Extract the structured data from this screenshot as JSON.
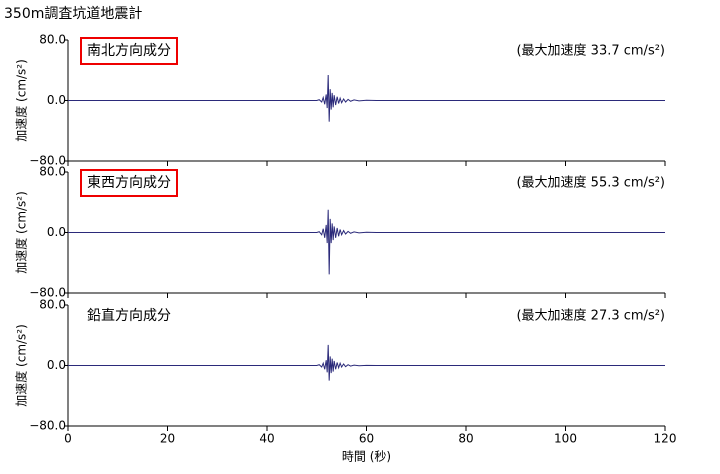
{
  "title": "350m調査坑道地震計",
  "chart_data": [
    {
      "type": "line",
      "subtitle": "南北方向成分",
      "highlight": true,
      "annotation": "(最大加速度 33.7 cm/s²)",
      "ylabel": "加速度 (cm/s²)",
      "x": [
        0,
        50,
        50.5,
        51,
        51.3,
        51.6,
        51.9,
        52.1,
        52.3,
        52.5,
        52.7,
        52.9,
        53.1,
        53.3,
        53.5,
        53.8,
        54.1,
        54.4,
        54.7,
        55,
        55.4,
        55.8,
        56.3,
        56.8,
        57.5,
        58.5,
        60,
        62,
        120
      ],
      "values": [
        0,
        0,
        1,
        -2,
        4,
        -5,
        8,
        -10,
        33.7,
        -28,
        15,
        -12,
        10,
        -9,
        7,
        -6,
        5,
        -4,
        3,
        -3,
        2,
        -2,
        1.5,
        -1,
        0.8,
        -0.5,
        0.3,
        0,
        0
      ],
      "color": "#2b2a7a",
      "xlim": [
        0,
        120
      ],
      "ylim": [
        -80,
        80
      ],
      "xticks": [
        0,
        20,
        40,
        60,
        80,
        100,
        120
      ],
      "yticks": [
        {
          "value": 80,
          "label": "80.0"
        },
        {
          "value": 0,
          "label": "0.0"
        },
        {
          "value": -80,
          "label": "−80.0"
        }
      ]
    },
    {
      "type": "line",
      "subtitle": "東西方向成分",
      "highlight": true,
      "annotation": "(最大加速度 55.3 cm/s²)",
      "ylabel": "加速度 (cm/s²)",
      "x": [
        0,
        50,
        50.5,
        51,
        51.3,
        51.6,
        51.9,
        52.1,
        52.3,
        52.5,
        52.7,
        52.9,
        53.1,
        53.3,
        53.5,
        53.8,
        54.1,
        54.4,
        54.7,
        55,
        55.4,
        55.8,
        56.3,
        56.8,
        57.5,
        58.5,
        60,
        62,
        120
      ],
      "values": [
        0,
        0,
        1,
        -3,
        5,
        -7,
        10,
        -14,
        30,
        -55.3,
        18,
        -14,
        12,
        -10,
        8,
        -7,
        6,
        -5,
        4,
        -3,
        2.5,
        -2,
        1.5,
        -1,
        0.8,
        -0.5,
        0.3,
        0,
        0
      ],
      "color": "#2b2a7a",
      "xlim": [
        0,
        120
      ],
      "ylim": [
        -80,
        80
      ],
      "xticks": [
        0,
        20,
        40,
        60,
        80,
        100,
        120
      ],
      "yticks": [
        {
          "value": 80,
          "label": "80.0"
        },
        {
          "value": 0,
          "label": "0.0"
        },
        {
          "value": -80,
          "label": "−80.0"
        }
      ]
    },
    {
      "type": "line",
      "subtitle": "鉛直方向成分",
      "highlight": false,
      "annotation": "(最大加速度 27.3 cm/s²)",
      "ylabel": "加速度 (cm/s²)",
      "xlabel": "時間 (秒)",
      "show_xtick_labels": true,
      "x": [
        0,
        50,
        50.5,
        51,
        51.3,
        51.6,
        51.9,
        52.1,
        52.3,
        52.5,
        52.7,
        52.9,
        53.1,
        53.3,
        53.5,
        53.8,
        54.1,
        54.4,
        54.7,
        55,
        55.4,
        55.8,
        56.3,
        56.8,
        57.5,
        58.5,
        60,
        62,
        120
      ],
      "values": [
        0,
        0,
        1,
        -2,
        3,
        -5,
        7,
        -9,
        27.3,
        -20,
        12,
        -10,
        9,
        -8,
        6,
        -5,
        4,
        -3,
        3,
        -2,
        2,
        -1.5,
        1,
        -0.8,
        0.5,
        -0.3,
        0.2,
        0,
        0
      ],
      "color": "#2b2a7a",
      "xlim": [
        0,
        120
      ],
      "ylim": [
        -80,
        80
      ],
      "xticks": [
        0,
        20,
        40,
        60,
        80,
        100,
        120
      ],
      "yticks": [
        {
          "value": 80,
          "label": "80.0"
        },
        {
          "value": 0,
          "label": "0.0"
        },
        {
          "value": -80,
          "label": "−80.0"
        }
      ]
    }
  ]
}
